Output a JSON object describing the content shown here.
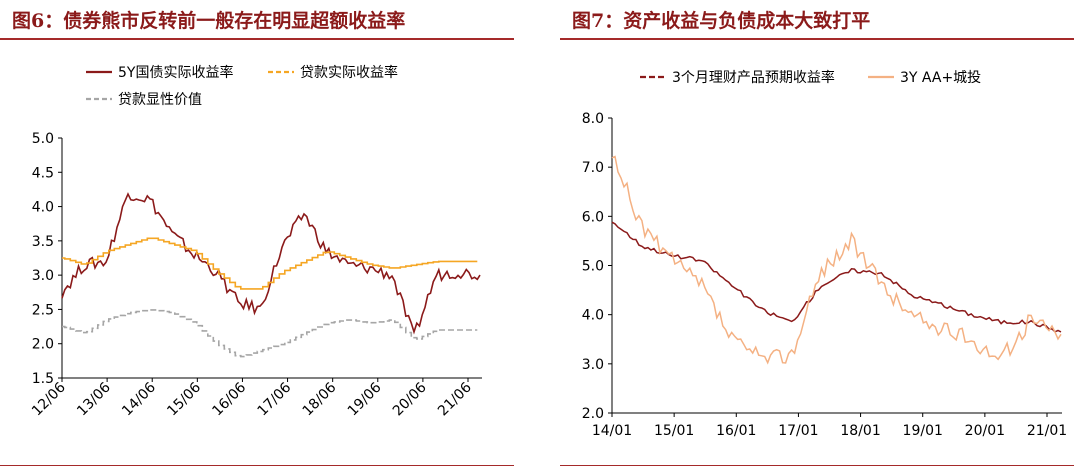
{
  "charts": [
    {
      "title": "图6：债券熊市反转前一般存在明显超额收益率",
      "type": "line",
      "x_ticks": [
        "12/06",
        "13/06",
        "14/06",
        "15/06",
        "16/06",
        "17/06",
        "18/06",
        "19/06",
        "20/06",
        "21/06"
      ],
      "y_ticks": [
        "5.0",
        "4.5",
        "4.0",
        "3.5",
        "3.0",
        "2.5",
        "2.0",
        "1.5"
      ],
      "ylim": [
        1.5,
        5.0
      ],
      "legend": [
        "5Y国债实际收益率",
        "贷款实际收益率",
        "贷款显性价值"
      ],
      "colors": {
        "s1": "#8b1a1a",
        "s2": "#f5a623",
        "s3": "#a6a6a6"
      }
    },
    {
      "title": "图7：资产收益与负债成本大致打平",
      "type": "line",
      "x_ticks": [
        "14/01",
        "15/01",
        "16/01",
        "17/01",
        "18/01",
        "19/01",
        "20/01",
        "21/01"
      ],
      "y_ticks": [
        "8.0",
        "7.0",
        "6.0",
        "5.0",
        "4.0",
        "3.0",
        "2.0"
      ],
      "ylim": [
        2.0,
        8.0
      ],
      "legend": [
        "3个月理财产品预期收益率",
        "3Y AA+城投"
      ],
      "colors": {
        "s1": "#8b1a1a",
        "s2": "#f4b183"
      }
    }
  ],
  "chart_data": [
    {
      "type": "line",
      "title": "图6：债券熊市反转前一般存在明显超额收益率",
      "x": [
        "12/06",
        "12/12",
        "13/06",
        "13/12",
        "14/06",
        "14/12",
        "15/06",
        "15/12",
        "16/06",
        "16/12",
        "17/06",
        "17/12",
        "18/06",
        "18/12",
        "19/06",
        "19/12",
        "20/06",
        "20/12",
        "21/06",
        "21/09"
      ],
      "ylim": [
        1.5,
        5.0
      ],
      "series": [
        {
          "name": "5Y国债实际收益率",
          "values": [
            2.75,
            3.15,
            3.2,
            4.2,
            4.1,
            3.6,
            3.3,
            3.05,
            2.6,
            2.5,
            3.4,
            3.9,
            3.35,
            3.15,
            3.1,
            3.0,
            2.1,
            3.0,
            3.05,
            3.0
          ]
        },
        {
          "name": "贷款实际收益率",
          "values": [
            3.25,
            3.15,
            3.35,
            3.45,
            3.55,
            3.45,
            3.35,
            3.05,
            2.8,
            2.8,
            3.05,
            3.2,
            3.35,
            3.25,
            3.15,
            3.1,
            3.15,
            3.2,
            3.2,
            3.2
          ]
        },
        {
          "name": "贷款显性价值",
          "values": [
            2.25,
            2.15,
            2.35,
            2.45,
            2.5,
            2.45,
            2.3,
            2.0,
            1.8,
            1.9,
            2.0,
            2.15,
            2.3,
            2.35,
            2.3,
            2.35,
            2.05,
            2.2,
            2.2,
            2.2
          ]
        }
      ]
    },
    {
      "type": "line",
      "title": "图7：资产收益与负债成本大致打平",
      "x": [
        "14/01",
        "14/07",
        "15/01",
        "15/07",
        "16/01",
        "16/07",
        "17/01",
        "17/07",
        "18/01",
        "18/07",
        "19/01",
        "19/07",
        "20/01",
        "20/07",
        "21/01",
        "21/07"
      ],
      "ylim": [
        2.0,
        8.0
      ],
      "series": [
        {
          "name": "3个月理财产品预期收益率",
          "values": [
            5.9,
            5.4,
            5.2,
            5.1,
            4.6,
            4.1,
            3.85,
            4.6,
            4.9,
            4.85,
            4.4,
            4.2,
            4.0,
            3.85,
            3.85,
            3.65
          ]
        },
        {
          "name": "3Y AA+城投",
          "values": [
            7.2,
            5.8,
            5.1,
            4.6,
            3.5,
            3.1,
            3.2,
            4.9,
            5.5,
            4.6,
            4.0,
            3.7,
            3.5,
            3.1,
            3.9,
            3.6
          ]
        }
      ]
    }
  ]
}
